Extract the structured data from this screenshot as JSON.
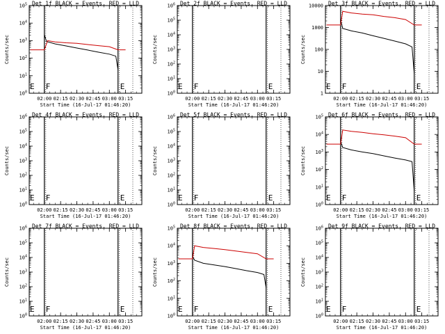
{
  "chart_data": [
    {
      "type": "line",
      "title": "Det 1f BLACK = Events, RED = LLD",
      "xlabel": "Start Time (16-Jul-17 01:46:20)",
      "ylabel": "Counts/sec",
      "x_ticks": [
        "02:00",
        "02:15",
        "02:30",
        "02:45",
        "03:00",
        "03:15"
      ],
      "y_scale": "log",
      "y_exponents": [
        0,
        1,
        2,
        3,
        4,
        5
      ],
      "y_tick_style": "power",
      "markers": [
        {
          "t": "02:00",
          "label": "F"
        },
        {
          "t": "03:08",
          "label": "E"
        }
      ],
      "series": [
        {
          "color": "#000000",
          "t": [
            "02:00",
            "02:02",
            "02:10",
            "02:20",
            "02:30",
            "02:40",
            "02:50",
            "03:00",
            "03:06",
            "03:08"
          ],
          "values": [
            2200,
            900,
            650,
            500,
            380,
            290,
            220,
            170,
            130,
            22
          ]
        },
        {
          "color": "#cc0000",
          "t": [
            "01:47",
            "02:00",
            "02:03",
            "02:10",
            "02:20",
            "02:30",
            "02:40",
            "02:50",
            "03:00",
            "03:08",
            "03:15"
          ],
          "values": [
            300,
            300,
            1000,
            850,
            750,
            700,
            600,
            520,
            450,
            300,
            300
          ]
        }
      ]
    },
    {
      "type": "line",
      "title": "Det 2f BLACK = Events, RED = LLD",
      "xlabel": "Start Time (16-Jul-17 01:46:20)",
      "ylabel": "Counts/sec",
      "x_ticks": [
        "02:00",
        "02:15",
        "02:30",
        "02:45",
        "03:00",
        "03:15"
      ],
      "y_scale": "log",
      "y_exponents": [
        0,
        1,
        2,
        3,
        4,
        5,
        6
      ],
      "y_tick_style": "power",
      "markers": [
        {
          "t": "02:00",
          "label": "F"
        },
        {
          "t": "03:08",
          "label": "E"
        }
      ],
      "series": []
    },
    {
      "type": "line",
      "title": "Det 3f BLACK = Events, RED = LLD",
      "xlabel": "Start Time (16-Jul-17 01:46:20)",
      "ylabel": "Counts/sec",
      "x_ticks": [
        "02:00",
        "02:15",
        "02:30",
        "02:45",
        "03:00",
        "03:15"
      ],
      "y_scale": "log",
      "y_exponents": [
        0,
        1,
        2,
        3,
        4
      ],
      "y_tick_style": "plain",
      "y_tick_labels": [
        "1",
        "10",
        "100",
        "1000",
        "10000"
      ],
      "markers": [
        {
          "t": "02:00",
          "label": "F"
        },
        {
          "t": "03:08",
          "label": "E"
        }
      ],
      "series": [
        {
          "color": "#000000",
          "t": [
            "02:00",
            "02:02",
            "02:10",
            "02:20",
            "02:30",
            "02:40",
            "02:50",
            "03:00",
            "03:06",
            "03:08"
          ],
          "values": [
            2200,
            900,
            700,
            560,
            420,
            320,
            240,
            180,
            130,
            8
          ]
        },
        {
          "color": "#cc0000",
          "t": [
            "01:47",
            "02:00",
            "02:02",
            "02:10",
            "02:20",
            "02:30",
            "02:40",
            "02:50",
            "03:00",
            "03:08",
            "03:15"
          ],
          "values": [
            1300,
            1300,
            5500,
            4600,
            4100,
            3800,
            3200,
            2800,
            2300,
            1300,
            1300
          ]
        }
      ]
    },
    {
      "type": "line",
      "title": "Det 4f BLACK = Events, RED = LLD",
      "xlabel": "Start Time (16-Jul-17 01:46:20)",
      "ylabel": "Counts/sec",
      "x_ticks": [
        "02:00",
        "02:15",
        "02:30",
        "02:45",
        "03:00",
        "03:15"
      ],
      "y_scale": "log",
      "y_exponents": [
        0,
        1,
        2,
        3,
        4,
        5,
        6
      ],
      "y_tick_style": "power",
      "markers": [
        {
          "t": "02:00",
          "label": "F"
        },
        {
          "t": "03:08",
          "label": "E"
        }
      ],
      "series": []
    },
    {
      "type": "line",
      "title": "Det 5f BLACK = Events, RED = LLD",
      "xlabel": "Start Time (16-Jul-17 01:46:20)",
      "ylabel": "Counts/sec",
      "x_ticks": [
        "02:00",
        "02:15",
        "02:30",
        "02:45",
        "03:00",
        "03:15"
      ],
      "y_scale": "log",
      "y_exponents": [
        0,
        1,
        2,
        3,
        4,
        5,
        6
      ],
      "y_tick_style": "power",
      "markers": [
        {
          "t": "02:00",
          "label": "F"
        },
        {
          "t": "03:08",
          "label": "E"
        }
      ],
      "series": []
    },
    {
      "type": "line",
      "title": "Det 6f BLACK = Events, RED = LLD",
      "xlabel": "Start Time (16-Jul-17 01:46:20)",
      "ylabel": "Counts/sec",
      "x_ticks": [
        "02:00",
        "02:15",
        "02:30",
        "02:45",
        "03:00",
        "03:15"
      ],
      "y_scale": "log",
      "y_exponents": [
        0,
        1,
        2,
        3,
        4,
        5
      ],
      "y_tick_style": "power",
      "markers": [
        {
          "t": "02:00",
          "label": "F"
        },
        {
          "t": "03:08",
          "label": "E"
        }
      ],
      "series": [
        {
          "color": "#000000",
          "t": [
            "02:00",
            "02:02",
            "02:10",
            "02:20",
            "02:30",
            "02:40",
            "02:50",
            "03:00",
            "03:06",
            "03:08"
          ],
          "values": [
            4000,
            1800,
            1300,
            1000,
            800,
            600,
            450,
            350,
            280,
            6
          ]
        },
        {
          "color": "#cc0000",
          "t": [
            "01:47",
            "02:00",
            "02:02",
            "02:10",
            "02:20",
            "02:30",
            "02:40",
            "02:50",
            "03:00",
            "03:08",
            "03:15"
          ],
          "values": [
            2800,
            2800,
            18000,
            15000,
            13000,
            11000,
            9500,
            8000,
            6500,
            2800,
            2800
          ]
        }
      ]
    },
    {
      "type": "line",
      "title": "Det 7f BLACK = Events, RED = LLD",
      "xlabel": "Start Time (16-Jul-17 01:46:20)",
      "ylabel": "Counts/sec",
      "x_ticks": [
        "02:00",
        "02:15",
        "02:30",
        "02:45",
        "03:00",
        "03:15"
      ],
      "y_scale": "log",
      "y_exponents": [
        0,
        1,
        2,
        3,
        4,
        5,
        6
      ],
      "y_tick_style": "power",
      "markers": [
        {
          "t": "02:00",
          "label": "F"
        },
        {
          "t": "03:08",
          "label": "E"
        }
      ],
      "series": []
    },
    {
      "type": "line",
      "title": "Det 8f BLACK = Events, RED = LLD",
      "xlabel": "Start Time (16-Jul-17 01:46:20)",
      "ylabel": "Counts/sec",
      "x_ticks": [
        "02:00",
        "02:15",
        "02:30",
        "02:45",
        "03:00",
        "03:15"
      ],
      "y_scale": "log",
      "y_exponents": [
        0,
        1,
        2,
        3,
        4,
        5
      ],
      "y_tick_style": "power",
      "markers": [
        {
          "t": "02:00",
          "label": "F"
        },
        {
          "t": "03:08",
          "label": "E"
        }
      ],
      "series": [
        {
          "color": "#000000",
          "t": [
            "02:00",
            "02:02",
            "02:10",
            "02:20",
            "02:30",
            "02:40",
            "02:50",
            "03:00",
            "03:06",
            "03:08"
          ],
          "values": [
            2500,
            1500,
            1000,
            800,
            650,
            500,
            380,
            300,
            230,
            40
          ]
        },
        {
          "color": "#cc0000",
          "t": [
            "01:47",
            "02:00",
            "02:02",
            "02:10",
            "02:20",
            "02:30",
            "02:40",
            "02:50",
            "03:00",
            "03:08",
            "03:15"
          ],
          "values": [
            1800,
            1800,
            10000,
            8000,
            7000,
            6000,
            5000,
            4200,
            3500,
            1800,
            1800
          ]
        }
      ]
    },
    {
      "type": "line",
      "title": "Det 9f BLACK = Events, RED = LLD",
      "xlabel": "Start Time (16-Jul-17 01:46:20)",
      "ylabel": "Counts/sec",
      "x_ticks": [
        "02:00",
        "02:15",
        "02:30",
        "02:45",
        "03:00",
        "03:15"
      ],
      "y_scale": "log",
      "y_exponents": [
        0,
        1,
        2,
        3,
        4,
        5,
        6
      ],
      "y_tick_style": "power",
      "markers": [
        {
          "t": "02:00",
          "label": "F"
        },
        {
          "t": "03:08",
          "label": "E"
        }
      ],
      "series": []
    }
  ]
}
